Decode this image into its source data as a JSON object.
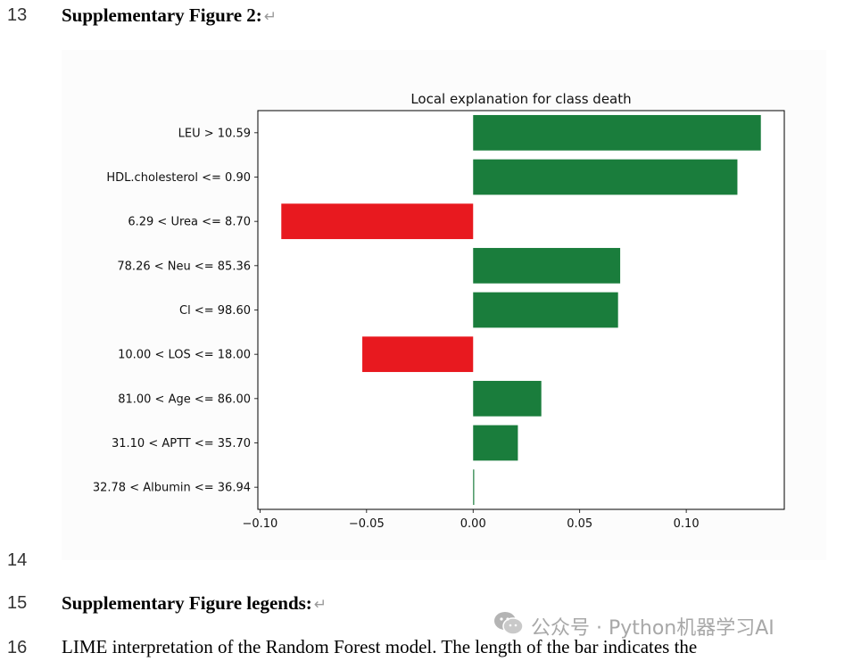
{
  "document": {
    "lines": [
      {
        "number": "13",
        "text": "Supplementary Figure 2:",
        "bold": true
      },
      {
        "number": "14",
        "text": ""
      },
      {
        "number": "15",
        "text": "Supplementary Figure legends:",
        "bold": true
      },
      {
        "number": "16",
        "text": "LIME interpretation of the Random Forest model. The length of the bar indicates the",
        "bold": false
      }
    ],
    "paragraph_mark": "↵"
  },
  "watermark": {
    "text": "公众号 · Python机器学习AI",
    "icon": "wechat-icon"
  },
  "chart_data": {
    "type": "bar",
    "orientation": "horizontal",
    "title": "Local explanation for class death",
    "xlabel": "",
    "ylabel": "",
    "categories": [
      "LEU > 10.59",
      "HDL.cholesterol <= 0.90",
      "6.29 < Urea <= 8.70",
      "78.26 < Neu <= 85.36",
      "Cl <= 98.60",
      "10.00 < LOS <= 18.00",
      "81.00 < Age <= 86.00",
      "31.10 < APTT <= 35.70",
      "32.78 < Albumin <= 36.94"
    ],
    "values": [
      0.135,
      0.124,
      -0.09,
      0.069,
      0.068,
      -0.052,
      0.032,
      0.021,
      0.0005
    ],
    "xlim": [
      -0.101,
      0.146
    ],
    "xticks": [
      -0.1,
      -0.05,
      0.0,
      0.05,
      0.1
    ],
    "xtick_labels": [
      "−0.10",
      "−0.05",
      "0.00",
      "0.05",
      "0.10"
    ],
    "colors": {
      "positive": "#1a7d3c",
      "negative": "#e8191f"
    },
    "grid": false,
    "legend": "none"
  }
}
